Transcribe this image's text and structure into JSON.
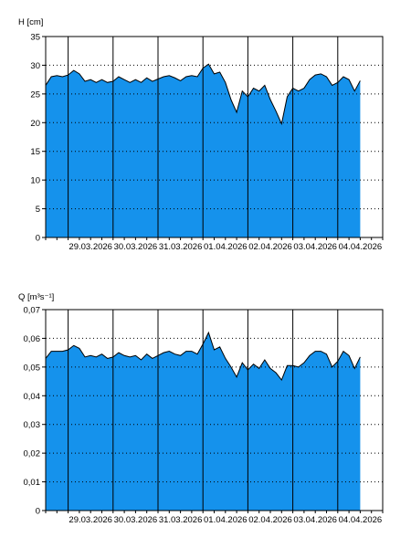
{
  "colors": {
    "fill": "#1592ec",
    "line": "#000000",
    "grid": "#000000",
    "background": "#ffffff"
  },
  "chart_data": [
    {
      "type": "area",
      "ylabel": "H [cm]",
      "ylim": [
        0,
        35
      ],
      "yticks": [
        0,
        5,
        10,
        15,
        20,
        25,
        30,
        35
      ],
      "ytick_labels": [
        "0",
        "5",
        "10",
        "15",
        "20",
        "25",
        "30",
        "35"
      ],
      "xlim": [
        "2026-03-28T12:00",
        "2026-04-05T00:00"
      ],
      "x_tick_labels": [
        "29.03.2026",
        "30.03.2026",
        "31.03.2026",
        "01.04.2026",
        "02.04.2026",
        "03.04.2026",
        "04.04.2026"
      ],
      "x_tick_dates": [
        "2026-03-29T00:00",
        "2026-03-30T00:00",
        "2026-03-31T00:00",
        "2026-04-01T00:00",
        "2026-04-02T00:00",
        "2026-04-03T00:00",
        "2026-04-04T00:00"
      ],
      "grid": true,
      "x": [
        "2026-03-28T12:00",
        "2026-03-28T15:00",
        "2026-03-28T18:00",
        "2026-03-28T21:00",
        "2026-03-29T00:00",
        "2026-03-29T03:00",
        "2026-03-29T06:00",
        "2026-03-29T09:00",
        "2026-03-29T12:00",
        "2026-03-29T15:00",
        "2026-03-29T18:00",
        "2026-03-29T21:00",
        "2026-03-30T00:00",
        "2026-03-30T03:00",
        "2026-03-30T06:00",
        "2026-03-30T09:00",
        "2026-03-30T12:00",
        "2026-03-30T15:00",
        "2026-03-30T18:00",
        "2026-03-30T21:00",
        "2026-03-31T00:00",
        "2026-03-31T03:00",
        "2026-03-31T06:00",
        "2026-03-31T09:00",
        "2026-03-31T12:00",
        "2026-03-31T15:00",
        "2026-03-31T18:00",
        "2026-03-31T21:00",
        "2026-04-01T00:00",
        "2026-04-01T03:00",
        "2026-04-01T06:00",
        "2026-04-01T09:00",
        "2026-04-01T12:00",
        "2026-04-01T15:00",
        "2026-04-01T18:00",
        "2026-04-01T21:00",
        "2026-04-02T00:00",
        "2026-04-02T03:00",
        "2026-04-02T06:00",
        "2026-04-02T09:00",
        "2026-04-02T12:00",
        "2026-04-02T15:00",
        "2026-04-02T18:00",
        "2026-04-02T21:00",
        "2026-04-03T00:00",
        "2026-04-03T03:00",
        "2026-04-03T06:00",
        "2026-04-03T09:00",
        "2026-04-03T12:00",
        "2026-04-03T15:00",
        "2026-04-03T18:00",
        "2026-04-03T21:00",
        "2026-04-04T00:00",
        "2026-04-04T03:00",
        "2026-04-04T06:00",
        "2026-04-04T09:00",
        "2026-04-04T12:00"
      ],
      "series": [
        {
          "values": [
            26.5,
            28.0,
            28.2,
            28.0,
            28.3,
            29.1,
            28.5,
            27.2,
            27.5,
            27.0,
            27.5,
            27.0,
            27.2,
            28.0,
            27.5,
            27.0,
            27.5,
            27.0,
            27.8,
            27.2,
            27.6,
            28.0,
            28.2,
            27.8,
            27.3,
            28.0,
            28.2,
            28.0,
            29.5,
            30.2,
            28.5,
            28.8,
            27.0,
            24.0,
            21.8,
            25.5,
            24.5,
            26.0,
            25.5,
            26.5,
            24.0,
            22.0,
            19.8,
            24.5,
            26.0,
            25.5,
            26.0,
            27.5,
            28.3,
            28.5,
            28.0,
            26.5,
            27.0,
            28.0,
            27.5,
            25.5,
            27.3
          ]
        }
      ]
    },
    {
      "type": "area",
      "ylabel": "Q [m³s⁻¹]",
      "ylim": [
        0,
        0.07
      ],
      "yticks": [
        0,
        0.01,
        0.02,
        0.03,
        0.04,
        0.05,
        0.06,
        0.07
      ],
      "ytick_labels": [
        "0",
        "0,01",
        "0,02",
        "0,03",
        "0,04",
        "0,05",
        "0,06",
        "0,07"
      ],
      "xlim": [
        "2026-03-28T12:00",
        "2026-04-05T00:00"
      ],
      "x_tick_labels": [
        "29.03.2026",
        "30.03.2026",
        "31.03.2026",
        "01.04.2026",
        "02.04.2026",
        "03.04.2026",
        "04.04.2026"
      ],
      "x_tick_dates": [
        "2026-03-29T00:00",
        "2026-03-30T00:00",
        "2026-03-31T00:00",
        "2026-04-01T00:00",
        "2026-04-02T00:00",
        "2026-04-03T00:00",
        "2026-04-04T00:00"
      ],
      "grid": true,
      "x": [
        "2026-03-28T12:00",
        "2026-03-28T15:00",
        "2026-03-28T18:00",
        "2026-03-28T21:00",
        "2026-03-29T00:00",
        "2026-03-29T03:00",
        "2026-03-29T06:00",
        "2026-03-29T09:00",
        "2026-03-29T12:00",
        "2026-03-29T15:00",
        "2026-03-29T18:00",
        "2026-03-29T21:00",
        "2026-03-30T00:00",
        "2026-03-30T03:00",
        "2026-03-30T06:00",
        "2026-03-30T09:00",
        "2026-03-30T12:00",
        "2026-03-30T15:00",
        "2026-03-30T18:00",
        "2026-03-30T21:00",
        "2026-03-31T00:00",
        "2026-03-31T03:00",
        "2026-03-31T06:00",
        "2026-03-31T09:00",
        "2026-03-31T12:00",
        "2026-03-31T15:00",
        "2026-03-31T18:00",
        "2026-03-31T21:00",
        "2026-04-01T00:00",
        "2026-04-01T03:00",
        "2026-04-01T06:00",
        "2026-04-01T09:00",
        "2026-04-01T12:00",
        "2026-04-01T15:00",
        "2026-04-01T18:00",
        "2026-04-01T21:00",
        "2026-04-02T00:00",
        "2026-04-02T03:00",
        "2026-04-02T06:00",
        "2026-04-02T09:00",
        "2026-04-02T12:00",
        "2026-04-02T15:00",
        "2026-04-02T18:00",
        "2026-04-02T21:00",
        "2026-04-03T00:00",
        "2026-04-03T03:00",
        "2026-04-03T06:00",
        "2026-04-03T09:00",
        "2026-04-03T12:00",
        "2026-04-03T15:00",
        "2026-04-03T18:00",
        "2026-04-03T21:00",
        "2026-04-04T00:00",
        "2026-04-04T03:00",
        "2026-04-04T06:00",
        "2026-04-04T09:00",
        "2026-04-04T12:00"
      ],
      "series": [
        {
          "values": [
            0.053,
            0.0555,
            0.0555,
            0.0555,
            0.056,
            0.0575,
            0.0565,
            0.0535,
            0.054,
            0.0535,
            0.0545,
            0.053,
            0.0535,
            0.055,
            0.054,
            0.0535,
            0.054,
            0.0525,
            0.0545,
            0.053,
            0.054,
            0.055,
            0.0555,
            0.0545,
            0.054,
            0.0555,
            0.0555,
            0.0545,
            0.058,
            0.062,
            0.056,
            0.057,
            0.053,
            0.05,
            0.0465,
            0.0515,
            0.049,
            0.051,
            0.0495,
            0.0525,
            0.0495,
            0.048,
            0.0455,
            0.0505,
            0.0505,
            0.05,
            0.0515,
            0.054,
            0.0555,
            0.0555,
            0.0545,
            0.05,
            0.052,
            0.0555,
            0.054,
            0.0495,
            0.0535
          ]
        }
      ]
    }
  ]
}
